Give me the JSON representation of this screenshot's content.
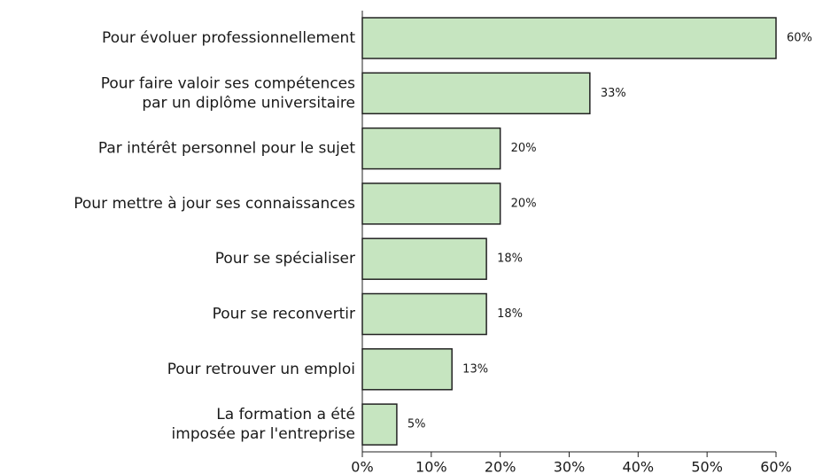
{
  "chart_data": {
    "type": "bar",
    "orientation": "horizontal",
    "categories": [
      [
        "Pour évoluer professionnellement"
      ],
      [
        "Pour faire valoir ses compétences",
        "par un diplôme universitaire"
      ],
      [
        "Par intérêt personnel pour le sujet"
      ],
      [
        "Pour mettre à jour ses connaissances"
      ],
      [
        "Pour se spécialiser"
      ],
      [
        "Pour se reconvertir"
      ],
      [
        "Pour retrouver un emploi"
      ],
      [
        "La formation a été",
        "imposée par l'entreprise"
      ]
    ],
    "values": [
      60,
      33,
      20,
      20,
      18,
      18,
      13,
      5
    ],
    "value_labels": [
      "60%",
      "33%",
      "20%",
      "20%",
      "18%",
      "18%",
      "13%",
      "5%"
    ],
    "color": "#c6e5c0",
    "xlim": [
      0,
      60
    ],
    "xticks": [
      {
        "value": 0,
        "label": "0%"
      },
      {
        "value": 10,
        "label": "10%"
      },
      {
        "value": 20,
        "label": "20%"
      },
      {
        "value": 30,
        "label": "30%"
      },
      {
        "value": 40,
        "label": "40%"
      },
      {
        "value": 50,
        "label": "50%"
      },
      {
        "value": 60,
        "label": "60%"
      }
    ],
    "grid": false
  }
}
